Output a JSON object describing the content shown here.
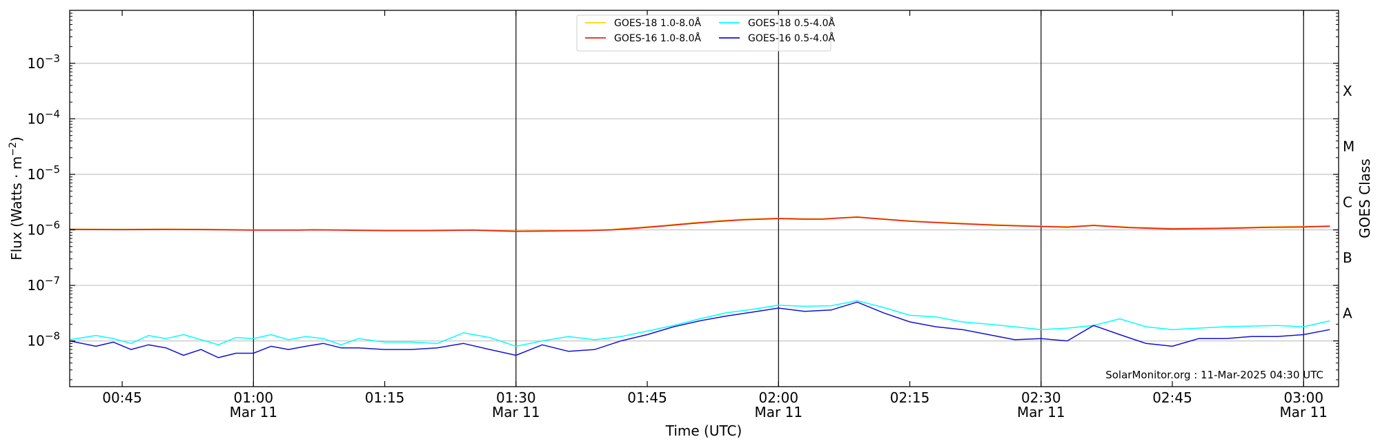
{
  "chart_data": {
    "type": "line",
    "xlabel": "Time (UTC)",
    "ylabel": "Flux (Watts · m⁻²)",
    "ylabel_right": "GOES Class",
    "yscale": "log",
    "ylim": [
      1.5e-09,
      0.009
    ],
    "xlim": [
      "2025-03-11T00:39",
      "2025-03-11T03:04"
    ],
    "x_ticks": [
      {
        "t": "2025-03-11T00:45",
        "label": "00:45",
        "sub": ""
      },
      {
        "t": "2025-03-11T01:00",
        "label": "01:00",
        "sub": "Mar 11"
      },
      {
        "t": "2025-03-11T01:15",
        "label": "01:15",
        "sub": ""
      },
      {
        "t": "2025-03-11T01:30",
        "label": "01:30",
        "sub": "Mar 11"
      },
      {
        "t": "2025-03-11T01:45",
        "label": "01:45",
        "sub": ""
      },
      {
        "t": "2025-03-11T02:00",
        "label": "02:00",
        "sub": "Mar 11"
      },
      {
        "t": "2025-03-11T02:15",
        "label": "02:15",
        "sub": ""
      },
      {
        "t": "2025-03-11T02:30",
        "label": "02:30",
        "sub": "Mar 11"
      },
      {
        "t": "2025-03-11T02:45",
        "label": "02:45",
        "sub": ""
      },
      {
        "t": "2025-03-11T03:00",
        "label": "03:00",
        "sub": "Mar 11"
      }
    ],
    "y_ticks": [
      {
        "v": 1e-08,
        "label": "10",
        "exp": "−8"
      },
      {
        "v": 1e-07,
        "label": "10",
        "exp": "−7"
      },
      {
        "v": 1e-06,
        "label": "10",
        "exp": "−6"
      },
      {
        "v": 1e-05,
        "label": "10",
        "exp": "−5"
      },
      {
        "v": 0.0001,
        "label": "10",
        "exp": "−4"
      },
      {
        "v": 0.001,
        "label": "10",
        "exp": "−3"
      }
    ],
    "class_ticks": [
      {
        "v": 3.16e-08,
        "label": "A"
      },
      {
        "v": 3.16e-07,
        "label": "B"
      },
      {
        "v": 3.16e-06,
        "label": "C"
      },
      {
        "v": 3.16e-05,
        "label": "M"
      },
      {
        "v": 0.000316,
        "label": "X"
      }
    ],
    "vlines": [
      "2025-03-11T01:00",
      "2025-03-11T01:30",
      "2025-03-11T02:00",
      "2025-03-11T02:30",
      "2025-03-11T03:00"
    ],
    "grid": "horizontal",
    "legend": "top-center",
    "credit": "SolarMonitor.org : 11-Mar-2025 04:30 UTC",
    "series": [
      {
        "name": "GOES-18 1.0-8.0Å",
        "color": "#ffd700",
        "x": [
          "2025-03-11T00:39",
          "2025-03-11T00:45",
          "2025-03-11T00:50",
          "2025-03-11T00:55",
          "2025-03-11T01:00",
          "2025-03-11T01:05",
          "2025-03-11T01:07",
          "2025-03-11T01:10",
          "2025-03-11T01:15",
          "2025-03-11T01:20",
          "2025-03-11T01:25",
          "2025-03-11T01:30",
          "2025-03-11T01:35",
          "2025-03-11T01:38",
          "2025-03-11T01:41",
          "2025-03-11T01:44",
          "2025-03-11T01:47",
          "2025-03-11T01:50",
          "2025-03-11T01:53",
          "2025-03-11T01:56",
          "2025-03-11T02:00",
          "2025-03-11T02:03",
          "2025-03-11T02:05",
          "2025-03-11T02:07",
          "2025-03-11T02:09",
          "2025-03-11T02:11",
          "2025-03-11T02:15",
          "2025-03-11T02:20",
          "2025-03-11T02:25",
          "2025-03-11T02:30",
          "2025-03-11T02:33",
          "2025-03-11T02:36",
          "2025-03-11T02:40",
          "2025-03-11T02:45",
          "2025-03-11T02:50",
          "2025-03-11T02:53",
          "2025-03-11T02:56",
          "2025-03-11T03:00",
          "2025-03-11T03:03"
        ],
        "y": [
          1.03e-06,
          1.02e-06,
          1.03e-06,
          1.02e-06,
          1e-06,
          1e-06,
          1.01e-06,
          1e-06,
          9.8e-07,
          9.8e-07,
          1e-06,
          9.5e-07,
          9.7e-07,
          9.8e-07,
          1.02e-06,
          1.1e-06,
          1.2e-06,
          1.33e-06,
          1.45e-06,
          1.55e-06,
          1.62e-06,
          1.58e-06,
          1.58e-06,
          1.65e-06,
          1.72e-06,
          1.62e-06,
          1.45e-06,
          1.33e-06,
          1.23e-06,
          1.17e-06,
          1.14e-06,
          1.22e-06,
          1.12e-06,
          1.06e-06,
          1.08e-06,
          1.1e-06,
          1.13e-06,
          1.15e-06,
          1.18e-06
        ]
      },
      {
        "name": "GOES-16 1.0-8.0Å",
        "color": "#e8231c",
        "x": [
          "2025-03-11T00:39",
          "2025-03-11T00:45",
          "2025-03-11T00:50",
          "2025-03-11T00:55",
          "2025-03-11T01:00",
          "2025-03-11T01:05",
          "2025-03-11T01:07",
          "2025-03-11T01:10",
          "2025-03-11T01:15",
          "2025-03-11T01:20",
          "2025-03-11T01:25",
          "2025-03-11T01:30",
          "2025-03-11T01:35",
          "2025-03-11T01:38",
          "2025-03-11T01:41",
          "2025-03-11T01:44",
          "2025-03-11T01:47",
          "2025-03-11T01:50",
          "2025-03-11T01:53",
          "2025-03-11T01:56",
          "2025-03-11T02:00",
          "2025-03-11T02:03",
          "2025-03-11T02:05",
          "2025-03-11T02:07",
          "2025-03-11T02:09",
          "2025-03-11T02:11",
          "2025-03-11T02:15",
          "2025-03-11T02:20",
          "2025-03-11T02:25",
          "2025-03-11T02:30",
          "2025-03-11T02:33",
          "2025-03-11T02:36",
          "2025-03-11T02:40",
          "2025-03-11T02:45",
          "2025-03-11T02:50",
          "2025-03-11T02:53",
          "2025-03-11T02:56",
          "2025-03-11T03:00",
          "2025-03-11T03:03"
        ],
        "y": [
          1.02e-06,
          1.01e-06,
          1.02e-06,
          1.01e-06,
          9.9e-07,
          9.9e-07,
          1e-06,
          9.9e-07,
          9.7e-07,
          9.7e-07,
          9.9e-07,
          9.4e-07,
          9.6e-07,
          9.7e-07,
          1e-06,
          1.08e-06,
          1.18e-06,
          1.3e-06,
          1.42e-06,
          1.52e-06,
          1.6e-06,
          1.56e-06,
          1.56e-06,
          1.63e-06,
          1.7e-06,
          1.6e-06,
          1.43e-06,
          1.31e-06,
          1.21e-06,
          1.15e-06,
          1.12e-06,
          1.2e-06,
          1.1e-06,
          1.04e-06,
          1.06e-06,
          1.08e-06,
          1.11e-06,
          1.13e-06,
          1.16e-06
        ]
      },
      {
        "name": "GOES-18 0.5-4.0Å",
        "color": "#00ffff",
        "x": [
          "2025-03-11T00:39",
          "2025-03-11T00:42",
          "2025-03-11T00:44",
          "2025-03-11T00:46",
          "2025-03-11T00:48",
          "2025-03-11T00:50",
          "2025-03-11T00:52",
          "2025-03-11T00:54",
          "2025-03-11T00:56",
          "2025-03-11T00:58",
          "2025-03-11T01:00",
          "2025-03-11T01:02",
          "2025-03-11T01:04",
          "2025-03-11T01:06",
          "2025-03-11T01:08",
          "2025-03-11T01:10",
          "2025-03-11T01:12",
          "2025-03-11T01:15",
          "2025-03-11T01:18",
          "2025-03-11T01:21",
          "2025-03-11T01:24",
          "2025-03-11T01:27",
          "2025-03-11T01:30",
          "2025-03-11T01:33",
          "2025-03-11T01:36",
          "2025-03-11T01:39",
          "2025-03-11T01:42",
          "2025-03-11T01:45",
          "2025-03-11T01:48",
          "2025-03-11T01:51",
          "2025-03-11T01:54",
          "2025-03-11T01:57",
          "2025-03-11T02:00",
          "2025-03-11T02:03",
          "2025-03-11T02:06",
          "2025-03-11T02:09",
          "2025-03-11T02:12",
          "2025-03-11T02:15",
          "2025-03-11T02:18",
          "2025-03-11T02:21",
          "2025-03-11T02:24",
          "2025-03-11T02:27",
          "2025-03-11T02:30",
          "2025-03-11T02:33",
          "2025-03-11T02:36",
          "2025-03-11T02:39",
          "2025-03-11T02:42",
          "2025-03-11T02:45",
          "2025-03-11T02:48",
          "2025-03-11T02:51",
          "2025-03-11T02:54",
          "2025-03-11T02:57",
          "2025-03-11T03:00",
          "2025-03-11T03:03"
        ],
        "y": [
          1.05e-08,
          1.25e-08,
          1.1e-08,
          9e-09,
          1.25e-08,
          1.1e-08,
          1.3e-08,
          1.05e-08,
          8.5e-09,
          1.15e-08,
          1.1e-08,
          1.3e-08,
          1.05e-08,
          1.2e-08,
          1.1e-08,
          8.5e-09,
          1.1e-08,
          9.5e-09,
          9.5e-09,
          9e-09,
          1.4e-08,
          1.15e-08,
          8e-09,
          1e-08,
          1.2e-08,
          1.05e-08,
          1.2e-08,
          1.5e-08,
          1.9e-08,
          2.5e-08,
          3.2e-08,
          3.7e-08,
          4.4e-08,
          4.2e-08,
          4.3e-08,
          5.3e-08,
          4e-08,
          2.9e-08,
          2.7e-08,
          2.2e-08,
          2e-08,
          1.8e-08,
          1.6e-08,
          1.7e-08,
          1.9e-08,
          2.5e-08,
          1.8e-08,
          1.6e-08,
          1.7e-08,
          1.8e-08,
          1.85e-08,
          1.9e-08,
          1.8e-08,
          2.3e-08
        ]
      },
      {
        "name": "GOES-16 0.5-4.0Å",
        "color": "#1010d8",
        "x": [
          "2025-03-11T00:39",
          "2025-03-11T00:42",
          "2025-03-11T00:44",
          "2025-03-11T00:46",
          "2025-03-11T00:48",
          "2025-03-11T00:50",
          "2025-03-11T00:52",
          "2025-03-11T00:54",
          "2025-03-11T00:56",
          "2025-03-11T00:58",
          "2025-03-11T01:00",
          "2025-03-11T01:02",
          "2025-03-11T01:04",
          "2025-03-11T01:06",
          "2025-03-11T01:08",
          "2025-03-11T01:10",
          "2025-03-11T01:12",
          "2025-03-11T01:15",
          "2025-03-11T01:18",
          "2025-03-11T01:21",
          "2025-03-11T01:24",
          "2025-03-11T01:27",
          "2025-03-11T01:30",
          "2025-03-11T01:33",
          "2025-03-11T01:36",
          "2025-03-11T01:39",
          "2025-03-11T01:42",
          "2025-03-11T01:45",
          "2025-03-11T01:48",
          "2025-03-11T01:51",
          "2025-03-11T01:54",
          "2025-03-11T01:57",
          "2025-03-11T02:00",
          "2025-03-11T02:03",
          "2025-03-11T02:06",
          "2025-03-11T02:09",
          "2025-03-11T02:12",
          "2025-03-11T02:15",
          "2025-03-11T02:18",
          "2025-03-11T02:21",
          "2025-03-11T02:24",
          "2025-03-11T02:27",
          "2025-03-11T02:30",
          "2025-03-11T02:33",
          "2025-03-11T02:36",
          "2025-03-11T02:39",
          "2025-03-11T02:42",
          "2025-03-11T02:45",
          "2025-03-11T02:48",
          "2025-03-11T02:51",
          "2025-03-11T02:54",
          "2025-03-11T02:57",
          "2025-03-11T03:00",
          "2025-03-11T03:03"
        ],
        "y": [
          1e-08,
          8e-09,
          9.5e-09,
          7e-09,
          8.5e-09,
          7.5e-09,
          5.5e-09,
          7e-09,
          5e-09,
          6e-09,
          6e-09,
          8e-09,
          7e-09,
          8e-09,
          9e-09,
          7.5e-09,
          7.5e-09,
          7e-09,
          7e-09,
          7.5e-09,
          9e-09,
          7e-09,
          5.5e-09,
          8.5e-09,
          6.5e-09,
          7e-09,
          1e-08,
          1.3e-08,
          1.8e-08,
          2.3e-08,
          2.8e-08,
          3.3e-08,
          3.9e-08,
          3.4e-08,
          3.6e-08,
          5e-08,
          3.2e-08,
          2.2e-08,
          1.8e-08,
          1.6e-08,
          1.3e-08,
          1.05e-08,
          1.1e-08,
          1e-08,
          1.9e-08,
          1.3e-08,
          9e-09,
          8e-09,
          1.1e-08,
          1.1e-08,
          1.2e-08,
          1.2e-08,
          1.3e-08,
          1.6e-08
        ]
      }
    ]
  }
}
